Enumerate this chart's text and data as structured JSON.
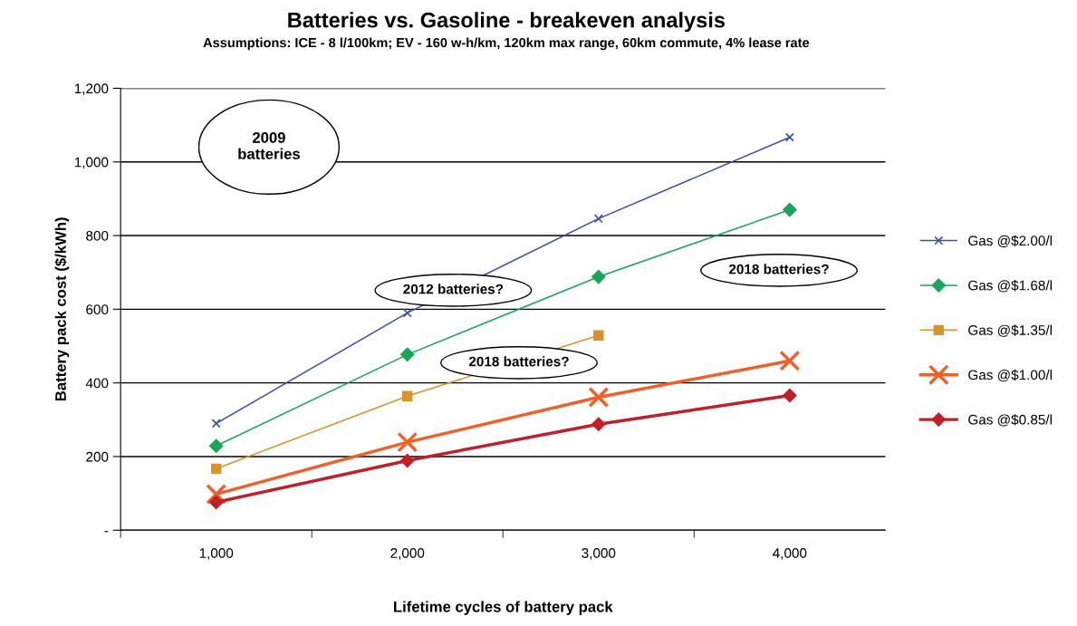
{
  "chart_data": {
    "type": "line",
    "title": "Batteries vs. Gasoline - breakeven analysis",
    "subtitle": "Assumptions: ICE - 8 l/100km; EV - 160 w-h/km, 120km max range, 60km commute, 4% lease rate",
    "xlabel": "Lifetime cycles of battery pack",
    "ylabel": "Battery pack cost ($/kWh)",
    "categories": [
      "1,000",
      "2,000",
      "3,000",
      "4,000"
    ],
    "series": [
      {
        "name": "Gas @$2.00/l",
        "color": "#3a50a0",
        "marker": "cross",
        "values": [
          290,
          590,
          846,
          1067
        ]
      },
      {
        "name": "Gas @$1.68/l",
        "color": "#1aa55a",
        "marker": "diamond",
        "values": [
          229,
          477,
          688,
          870
        ]
      },
      {
        "name": "Gas @$1.35/l",
        "color": "#d9922c",
        "marker": "square",
        "values": [
          167,
          364,
          529,
          null
        ]
      },
      {
        "name": "Gas @$1.00/l",
        "color": "#f0602a",
        "marker": "cross",
        "values": [
          98,
          239,
          361,
          460
        ]
      },
      {
        "name": "Gas @$0.85/l",
        "color": "#c0202a",
        "marker": "diamond",
        "values": [
          76,
          189,
          288,
          366
        ]
      }
    ],
    "ylim": [
      0,
      1200
    ],
    "yticks": [
      {
        "value": 0,
        "label": "-"
      },
      {
        "value": 200,
        "label": "200"
      },
      {
        "value": 400,
        "label": "400"
      },
      {
        "value": 600,
        "label": "600"
      },
      {
        "value": 800,
        "label": "800"
      },
      {
        "value": 1000,
        "label": "1,000"
      },
      {
        "value": 1200,
        "label": "1,200"
      }
    ],
    "grid": "y",
    "legend": "right",
    "line_style": "solid",
    "annotations": [
      "2009\nbatteries",
      "2012 batteries?",
      "2018 batteries?",
      "2018 batteries?"
    ]
  }
}
